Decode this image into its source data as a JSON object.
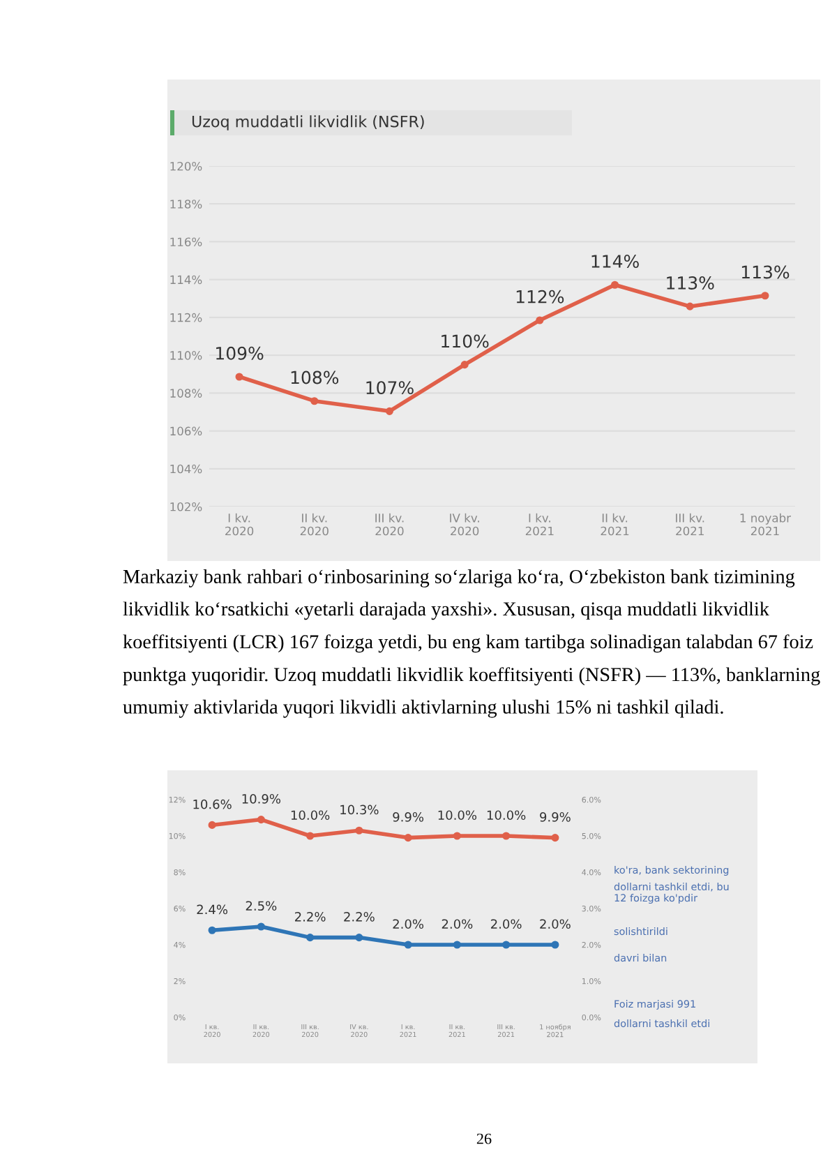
{
  "chart_data": [
    {
      "type": "line",
      "title": "Uzoq muddatli likvidlik (NSFR)",
      "categories": [
        "I kv.\n2020",
        "II kv.\n2020",
        "III kv.\n2020",
        "IV kv.\n2020",
        "I kv.\n2021",
        "II kv.\n2021",
        "III kv.\n2021",
        "1 noyabr\n2021"
      ],
      "series": [
        {
          "color": "#e0604a",
          "values": [
            108.86,
            107.58,
            107.04,
            109.5,
            111.85,
            113.72,
            112.58,
            113.15
          ],
          "value_labels": [
            "109%",
            "108%",
            "107%",
            "110%",
            "112%",
            "114%",
            "113%",
            "113%"
          ]
        }
      ],
      "ylim": [
        102,
        120
      ],
      "yticks": [
        {
          "value": 102,
          "label": "102%"
        },
        {
          "value": 104,
          "label": "104%"
        },
        {
          "value": 106,
          "label": "106%"
        },
        {
          "value": 108,
          "label": "108%"
        },
        {
          "value": 110,
          "label": "110%"
        },
        {
          "value": 112,
          "label": "112%"
        },
        {
          "value": 114,
          "label": "114%"
        },
        {
          "value": 116,
          "label": "116%"
        },
        {
          "value": 118,
          "label": "118%"
        },
        {
          "value": 120,
          "label": "120%"
        }
      ],
      "grid": "y",
      "marker": "circle",
      "line_style": "solid",
      "legend": false,
      "annotations": [
        "Markaziy bank rahbari o‘rinbosarining so‘zlariga ko‘ra, O‘zbekiston bank tizimining likvidlik ko‘rsatkichi «yetarli darajada yaxshi». Xususan, qisqa muddatli likvidlik koeffitsiyenti (LCR) 167 foizga yetdi, bu eng kam tartibga solinadigan talabdan 67 foiz punktga yuqoridir. Uzoq muddatli likvidlik koeffitsiyenti (NSFR) — 113%, banklarning umumiy aktivlarida yuqori likvidli aktivlarning ulushi 15% ni tashkil qiladi."
      ]
    },
    {
      "type": "line",
      "categories": [
        "I кв.\n2020",
        "II кв.\n2020",
        "III кв.\n2020",
        "IV кв.\n2020",
        "I кв.\n2021",
        "II кв.\n2021",
        "III кв.\n2021",
        "1 ноября\n2021"
      ],
      "series": [
        {
          "color": "#e0604a",
          "values": [
            10.6,
            10.9,
            10.0,
            10.3,
            9.9,
            10.0,
            10.0,
            9.9
          ],
          "value_labels": [
            "10.6%",
            "10.9%",
            "10.0%",
            "10.3%",
            "9.9%",
            "10.0%",
            "10.0%",
            "9.9%"
          ]
        },
        {
          "color": "#2e75b6",
          "axis": "y2",
          "values": [
            2.4,
            2.5,
            2.2,
            2.2,
            2.0,
            2.0,
            2.0,
            2.0
          ],
          "value_labels": [
            "2.4%",
            "2.5%",
            "2.2%",
            "2.2%",
            "2.0%",
            "2.0%",
            "2.0%",
            "2.0%"
          ]
        }
      ],
      "ylim": [
        0,
        12
      ],
      "yticks": [
        {
          "value": 0,
          "label": "0%"
        },
        {
          "value": 2,
          "label": "2%"
        },
        {
          "value": 4,
          "label": "4%"
        },
        {
          "value": 6,
          "label": "6%"
        },
        {
          "value": 8,
          "label": "8%"
        },
        {
          "value": 10,
          "label": "10%"
        },
        {
          "value": 12,
          "label": "12%"
        }
      ],
      "y2lim": [
        0,
        6
      ],
      "y2ticks": [
        {
          "value": 0,
          "label": "0.0%"
        },
        {
          "value": 1,
          "label": "1.0%"
        },
        {
          "value": 2,
          "label": "2.0%"
        },
        {
          "value": 3,
          "label": "3.0%"
        },
        {
          "value": 4,
          "label": "4.0%"
        },
        {
          "value": 5,
          "label": "5.0%"
        },
        {
          "value": 6,
          "label": "6.0%"
        }
      ],
      "grid": false,
      "marker": "circle",
      "line_style": "solid",
      "legend": false,
      "annotations": [
        "ko'ra, bank sektorining",
        "dollarni tashkil etdi, bu\n12 foizga ko'pdir",
        "solishtirildi",
        "davri bilan",
        "Foiz marjasi 991",
        "dollarni tashkil etdi",
        "26"
      ]
    }
  ]
}
